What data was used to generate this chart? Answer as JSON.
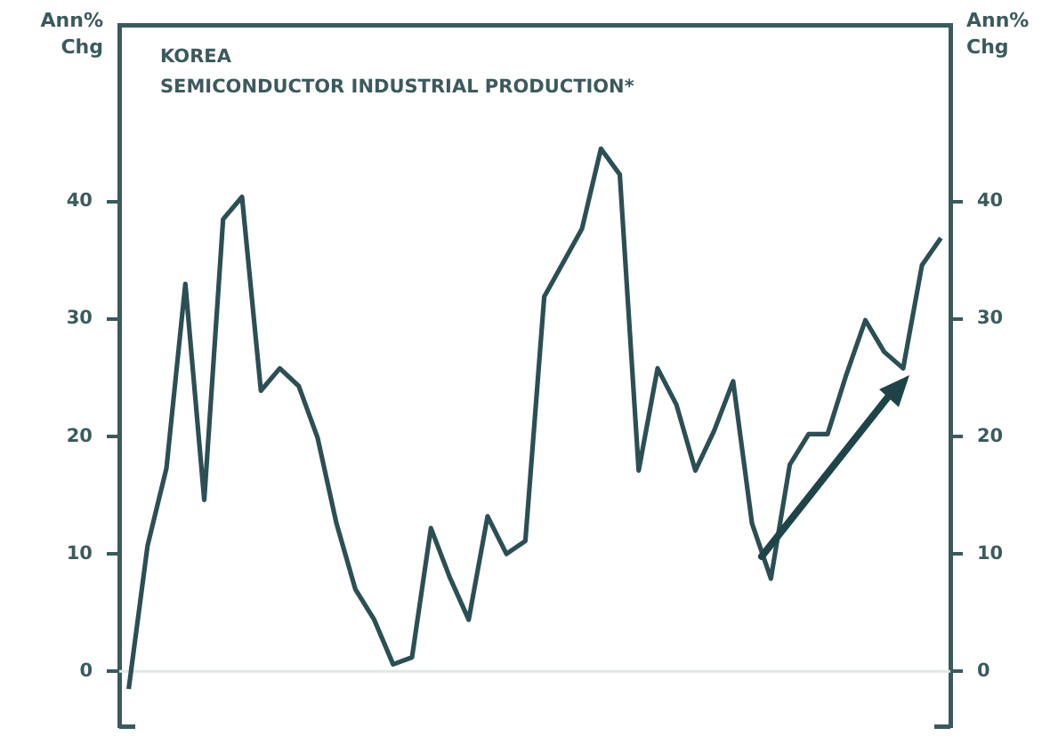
{
  "chart_data": {
    "type": "line",
    "title": "KOREA",
    "subtitle": "SEMICONDUCTOR INDUSTRIAL PRODUCTION*",
    "ylabel": "Ann% Chg",
    "y2label": "Ann% Chg",
    "categories": [
      null,
      null,
      null,
      null,
      null,
      null,
      null,
      null,
      null,
      null,
      null,
      null,
      null,
      null,
      null,
      null,
      null,
      null,
      null,
      null,
      null,
      null,
      null,
      null,
      null,
      null,
      null,
      null,
      null,
      null,
      null,
      null,
      null,
      null,
      null,
      null,
      null,
      null,
      null,
      null,
      null,
      null,
      null,
      null
    ],
    "series": [
      {
        "color": "#2b4f54",
        "values": [
          -1.5,
          10.7,
          17.3,
          33,
          14.6,
          38.5,
          40.4,
          23.9,
          25.8,
          24.3,
          19.9,
          12.6,
          7,
          4.4,
          0.6,
          1.2,
          12.2,
          8,
          4.4,
          13.2,
          10,
          11.1,
          31.9,
          34.8,
          37.7,
          44.5,
          42.3,
          17.1,
          25.8,
          22.7,
          17.1,
          20.5,
          24.7,
          12.6,
          7.9,
          17.6,
          20.2,
          20.2,
          25.3,
          29.9,
          27.2,
          25.8,
          34.6,
          36.9
        ]
      }
    ],
    "ylim": [
      -4.7,
      55
    ],
    "yticks": [
      0,
      10,
      20,
      30,
      40
    ],
    "y2lim": [
      -4.7,
      55
    ],
    "y2ticks": [
      0,
      10,
      20,
      30,
      40
    ],
    "ref_lines": [
      {
        "axis": "y",
        "value": 0,
        "color": "#dfe8e8"
      }
    ],
    "marker": "none",
    "line_style": "solid"
  }
}
